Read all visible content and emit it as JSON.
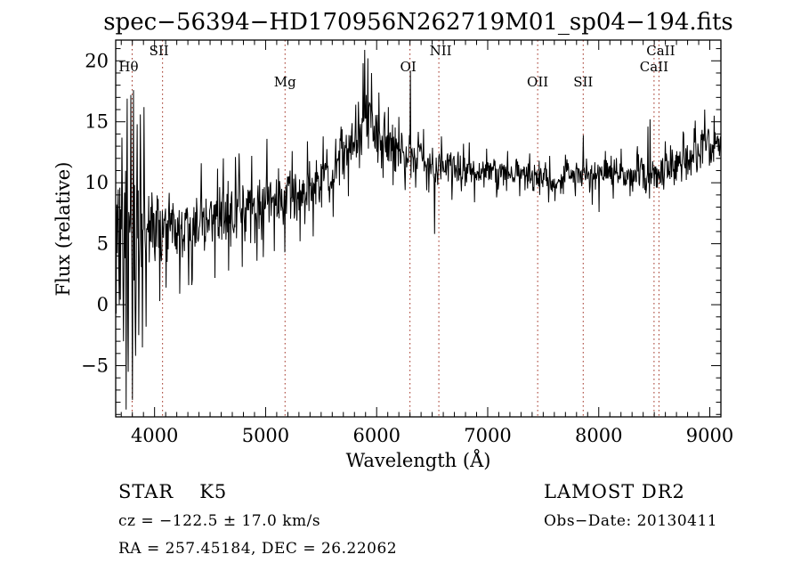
{
  "title": "spec−56394−HD170956N262719M01_sp04−194.fits",
  "chart_data": {
    "type": "line",
    "title": "spec−56394−HD170956N262719M01_sp04−194.fits",
    "xlabel": "Wavelength (Å)",
    "ylabel": "Flux (relative)",
    "xlim": [
      3650,
      9100
    ],
    "ylim": [
      -9.2,
      21.7
    ],
    "x_ticks": [
      4000,
      5000,
      6000,
      7000,
      8000,
      9000
    ],
    "y_ticks": [
      -5,
      0,
      5,
      10,
      15,
      20
    ],
    "x_minor_step": 100,
    "y_minor_step": 1,
    "grid": false,
    "legend": "none",
    "line_color": "#000000",
    "marker_line_color": "#a33527",
    "seed": 7,
    "spectral_lines": [
      {
        "label": "Hθ",
        "wavelength": 3798,
        "row": 2,
        "dx": -4
      },
      {
        "label": "SII",
        "wavelength": 4072,
        "row": 1,
        "dx": -4
      },
      {
        "label": "Mg",
        "wavelength": 5175,
        "row": 3,
        "dx": 0
      },
      {
        "label": "OI",
        "wavelength": 6300,
        "row": 2,
        "dx": -2
      },
      {
        "label": "NII",
        "wavelength": 6560,
        "row": 1,
        "dx": 2
      },
      {
        "label": "OII",
        "wavelength": 7450,
        "row": 3,
        "dx": 0
      },
      {
        "label": "SII",
        "wavelength": 7860,
        "row": 3,
        "dx": 0
      },
      {
        "label": "CaII",
        "wavelength": 8542,
        "row": 1,
        "dx": 2
      },
      {
        "label": "CaII",
        "wavelength": 8498,
        "row": 2,
        "dx": 0
      }
    ],
    "continuum": [
      [
        3650,
        4.5
      ],
      [
        3700,
        5.2
      ],
      [
        3760,
        5.5
      ],
      [
        3800,
        6.0
      ],
      [
        3850,
        5.5
      ],
      [
        3900,
        5.8
      ],
      [
        3950,
        6.0
      ],
      [
        4000,
        6.0
      ],
      [
        4100,
        5.8
      ],
      [
        4200,
        6.2
      ],
      [
        4300,
        6.5
      ],
      [
        4400,
        6.8
      ],
      [
        4500,
        7.0
      ],
      [
        4600,
        7.3
      ],
      [
        4700,
        7.5
      ],
      [
        4800,
        7.8
      ],
      [
        4900,
        8.0
      ],
      [
        5000,
        8.3
      ],
      [
        5100,
        8.6
      ],
      [
        5200,
        8.5
      ],
      [
        5300,
        9.0
      ],
      [
        5400,
        9.5
      ],
      [
        5500,
        10.3
      ],
      [
        5600,
        11.2
      ],
      [
        5700,
        12.0
      ],
      [
        5800,
        13.2
      ],
      [
        5850,
        14.0
      ],
      [
        5900,
        15.2
      ],
      [
        5950,
        15.0
      ],
      [
        6000,
        14.3
      ],
      [
        6050,
        13.6
      ],
      [
        6100,
        13.2
      ],
      [
        6150,
        12.8
      ],
      [
        6200,
        12.4
      ],
      [
        6300,
        12.1
      ],
      [
        6400,
        12.3
      ],
      [
        6500,
        11.8
      ],
      [
        6600,
        11.4
      ],
      [
        6700,
        11.2
      ],
      [
        6800,
        11.0
      ],
      [
        6900,
        10.9
      ],
      [
        7000,
        10.9
      ],
      [
        7100,
        10.7
      ],
      [
        7200,
        10.6
      ],
      [
        7300,
        10.8
      ],
      [
        7400,
        10.6
      ],
      [
        7500,
        10.5
      ],
      [
        7600,
        10.2
      ],
      [
        7700,
        10.5
      ],
      [
        7800,
        10.6
      ],
      [
        7900,
        10.5
      ],
      [
        8000,
        10.6
      ],
      [
        8100,
        10.7
      ],
      [
        8200,
        10.8
      ],
      [
        8300,
        10.7
      ],
      [
        8400,
        10.8
      ],
      [
        8500,
        10.9
      ],
      [
        8600,
        11.2
      ],
      [
        8700,
        11.6
      ],
      [
        8800,
        12.2
      ],
      [
        8900,
        12.8
      ],
      [
        9000,
        13.2
      ],
      [
        9100,
        13.0
      ]
    ],
    "noise_amplitude": [
      [
        3650,
        9.0
      ],
      [
        3700,
        8.2
      ],
      [
        3750,
        8.0
      ],
      [
        3800,
        6.5
      ],
      [
        3850,
        5.0
      ],
      [
        3900,
        4.0
      ],
      [
        3950,
        3.2
      ],
      [
        4000,
        2.8
      ],
      [
        4200,
        2.6
      ],
      [
        4400,
        2.4
      ],
      [
        4700,
        2.3
      ],
      [
        5000,
        2.2
      ],
      [
        5300,
        2.0
      ],
      [
        5600,
        1.9
      ],
      [
        5900,
        2.3
      ],
      [
        6100,
        1.8
      ],
      [
        6300,
        1.5
      ],
      [
        6500,
        1.3
      ],
      [
        6800,
        1.1
      ],
      [
        7200,
        1.0
      ],
      [
        7600,
        1.1
      ],
      [
        8000,
        1.1
      ],
      [
        8400,
        1.2
      ],
      [
        8800,
        1.5
      ],
      [
        9100,
        1.6
      ]
    ],
    "spikes": [
      [
        3742,
        -8.6
      ],
      [
        3752,
        16.9
      ],
      [
        3764,
        -5.5
      ],
      [
        3788,
        17.2
      ],
      [
        3800,
        -7.8
      ],
      [
        3812,
        17.6
      ],
      [
        3828,
        -4.2
      ],
      [
        3845,
        14.8
      ],
      [
        3858,
        -2.5
      ],
      [
        3872,
        15.6
      ],
      [
        3890,
        -3.5
      ],
      [
        3906,
        16.2
      ],
      [
        3925,
        -1.8
      ],
      [
        4046,
        0.3
      ],
      [
        4102,
        1.4
      ],
      [
        4226,
        0.9
      ],
      [
        4305,
        1.6
      ],
      [
        4340,
        2.1
      ],
      [
        4420,
        11.6
      ],
      [
        4545,
        2.2
      ],
      [
        4620,
        12.0
      ],
      [
        4668,
        2.8
      ],
      [
        4762,
        12.4
      ],
      [
        4790,
        3.1
      ],
      [
        4875,
        12.2
      ],
      [
        4920,
        3.6
      ],
      [
        4980,
        3.9
      ],
      [
        5012,
        13.6
      ],
      [
        5080,
        4.4
      ],
      [
        5175,
        4.3
      ],
      [
        5240,
        12.6
      ],
      [
        5310,
        5.2
      ],
      [
        5378,
        13.4
      ],
      [
        5430,
        5.6
      ],
      [
        5520,
        13.8
      ],
      [
        5610,
        7.2
      ],
      [
        5680,
        14.6
      ],
      [
        5745,
        8.9
      ],
      [
        5810,
        16.4
      ],
      [
        5845,
        11.2
      ],
      [
        5878,
        19.8
      ],
      [
        5892,
        20.9
      ],
      [
        5908,
        17.2
      ],
      [
        5922,
        20.2
      ],
      [
        5938,
        16.5
      ],
      [
        5955,
        19.0
      ],
      [
        5985,
        12.8
      ],
      [
        6022,
        17.4
      ],
      [
        6060,
        10.4
      ],
      [
        6105,
        16.2
      ],
      [
        6150,
        9.8
      ],
      [
        6200,
        15.4
      ],
      [
        6255,
        9.4
      ],
      [
        6302,
        19.2
      ],
      [
        6350,
        9.6
      ],
      [
        6420,
        14.4
      ],
      [
        6470,
        9.2
      ],
      [
        6520,
        5.8
      ],
      [
        6585,
        13.8
      ],
      [
        6680,
        8.6
      ],
      [
        6780,
        13.2
      ],
      [
        6880,
        8.4
      ],
      [
        6990,
        12.8
      ],
      [
        7080,
        8.8
      ],
      [
        7180,
        12.6
      ],
      [
        7290,
        8.9
      ],
      [
        7380,
        12.4
      ],
      [
        7470,
        9.0
      ],
      [
        7560,
        12.2
      ],
      [
        7607,
        8.5
      ],
      [
        7700,
        12.3
      ],
      [
        7790,
        8.9
      ],
      [
        7862,
        13.9
      ],
      [
        7940,
        8.2
      ],
      [
        8005,
        7.6
      ],
      [
        8060,
        12.6
      ],
      [
        8130,
        8.7
      ],
      [
        8200,
        12.8
      ],
      [
        8280,
        8.9
      ],
      [
        8350,
        13.0
      ],
      [
        8445,
        14.6
      ],
      [
        8462,
        15.2
      ],
      [
        8520,
        9.6
      ],
      [
        8600,
        13.4
      ],
      [
        8680,
        9.8
      ],
      [
        8760,
        14.2
      ],
      [
        8830,
        10.6
      ],
      [
        8870,
        15.1
      ],
      [
        8915,
        11.2
      ],
      [
        8955,
        16.0
      ],
      [
        9000,
        12.0
      ],
      [
        9040,
        15.5
      ],
      [
        9075,
        12.6
      ]
    ]
  },
  "annotations": {
    "object_type": "STAR",
    "subclass": "K5",
    "survey": "LAMOST DR2",
    "cz_text": "cz = −122.5 ± 17.0 km/s",
    "obs_date_text": "Obs−Date: 20130411",
    "radec_text": "RA = 257.45184, DEC =  26.22062"
  }
}
